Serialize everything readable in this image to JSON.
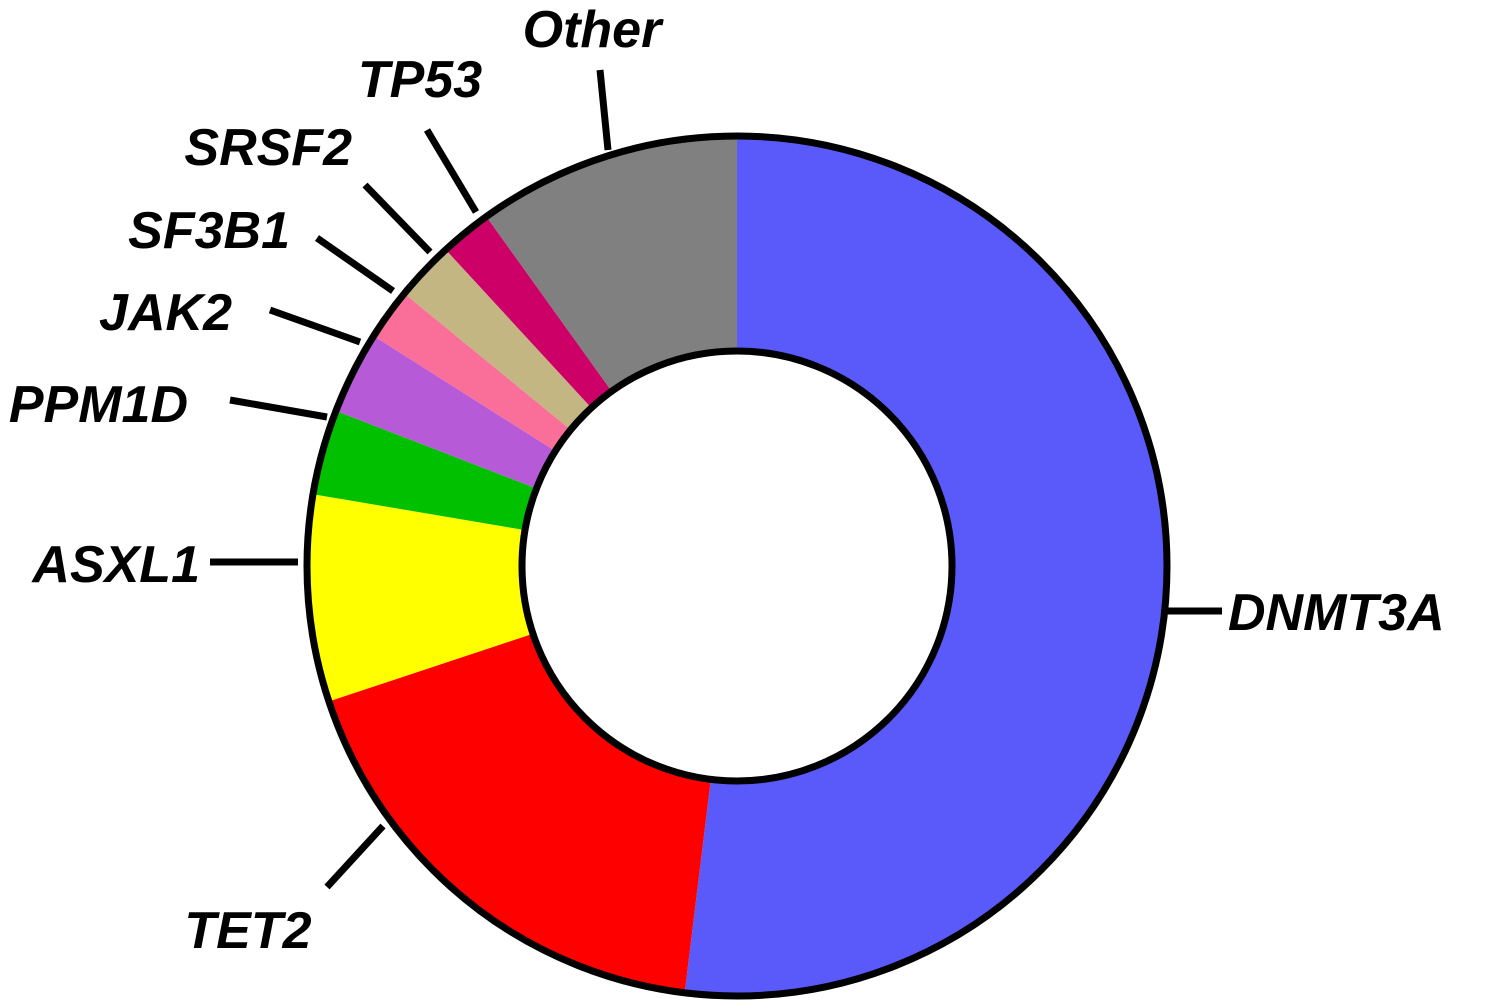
{
  "chart_data": {
    "type": "pie",
    "variant": "donut",
    "legend": "none",
    "outline_color": "#000000",
    "slices": [
      {
        "label": "DNMT3A",
        "value": 53.5,
        "color": "#5A5AFA"
      },
      {
        "label": "TET2",
        "value": 18.5,
        "color": "#FF0000"
      },
      {
        "label": "ASXL1",
        "value": 8.0,
        "color": "#FFFF00"
      },
      {
        "label": "PPM1D",
        "value": 3.3,
        "color": "#00C000"
      },
      {
        "label": "JAK2",
        "value": 3.2,
        "color": "#B65AD8"
      },
      {
        "label": "SF3B1",
        "value": 2.0,
        "color": "#FA6E9A"
      },
      {
        "label": "SRSF2",
        "value": 2.3,
        "color": "#C3B683"
      },
      {
        "label": "TP53",
        "value": 2.0,
        "color": "#CC0066"
      },
      {
        "label": "Other",
        "value": 10.2,
        "color": "#808080"
      }
    ]
  }
}
